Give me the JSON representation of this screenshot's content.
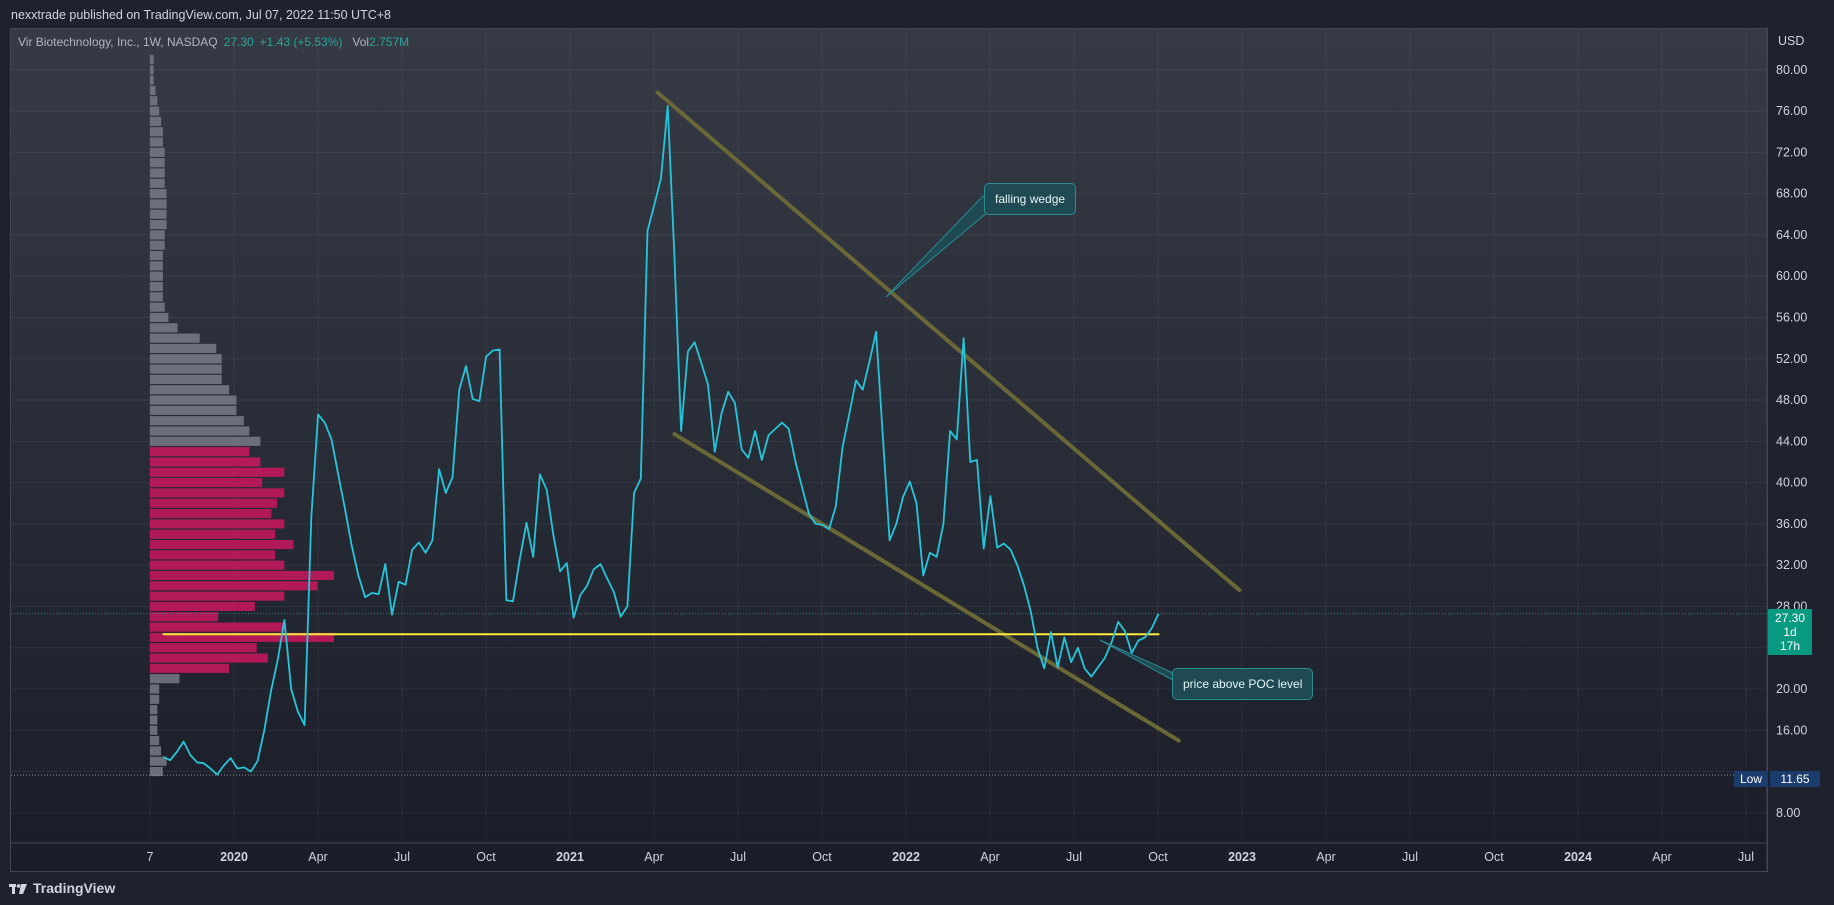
{
  "header": {
    "publisher_text": "nexxtrade published on TradingView.com, Jul 07, 2022 11:50 UTC+8"
  },
  "legend": {
    "symbol": "Vir Biotechnology, Inc., 1W, NASDAQ",
    "last": "27.30",
    "change": "+1.43 (+5.53%)",
    "vol_label": "Vol",
    "vol_value": "2.757M"
  },
  "brand": {
    "name": "TradingView"
  },
  "colors": {
    "line": "#26c6da",
    "profile_gray": "#787b86",
    "profile_value_area": "#c2185b",
    "poc": "#ffeb3b",
    "wedge": "#6b6837",
    "callout_bg": "#1f4a54",
    "price_tag": "#089981",
    "low_tag": "#1c3c6e"
  },
  "price_tag": {
    "price": "27.30",
    "countdown": "1d 17h"
  },
  "low_tag": {
    "label": "Low",
    "value": "11.65"
  },
  "annotations": [
    {
      "text": "falling wedge"
    },
    {
      "text": "price above POC level"
    }
  ],
  "chart_data": {
    "type": "line",
    "title": "",
    "xlabel": "",
    "ylabel": "USD",
    "currency": "USD",
    "ylim": [
      4,
      82
    ],
    "y_ticks": [
      "80.00",
      "76.00",
      "72.00",
      "68.00",
      "64.00",
      "60.00",
      "56.00",
      "52.00",
      "48.00",
      "44.00",
      "40.00",
      "36.00",
      "32.00",
      "28.00",
      "24.00",
      "20.00",
      "16.00",
      "8.00"
    ],
    "x_ticks": [
      {
        "label": "7",
        "bold": false
      },
      {
        "label": "2020",
        "bold": true
      },
      {
        "label": "Apr",
        "bold": false
      },
      {
        "label": "Jul",
        "bold": false
      },
      {
        "label": "Oct",
        "bold": false
      },
      {
        "label": "2021",
        "bold": true
      },
      {
        "label": "Apr",
        "bold": false
      },
      {
        "label": "Jul",
        "bold": false
      },
      {
        "label": "Oct",
        "bold": false
      },
      {
        "label": "2022",
        "bold": true
      },
      {
        "label": "Apr",
        "bold": false
      },
      {
        "label": "Jul",
        "bold": false
      },
      {
        "label": "Oct",
        "bold": false
      },
      {
        "label": "2023",
        "bold": true
      },
      {
        "label": "Apr",
        "bold": false
      },
      {
        "label": "Jul",
        "bold": false
      },
      {
        "label": "Oct",
        "bold": false
      },
      {
        "label": "2024",
        "bold": true
      },
      {
        "label": "Apr",
        "bold": false
      },
      {
        "label": "Jul",
        "bold": false
      }
    ],
    "last_price": 27.3,
    "low": 11.65,
    "poc_price": 25.3,
    "grid": true,
    "series": [
      {
        "values": [
          [
            2019.79,
            13.4
          ],
          [
            2019.81,
            13.1
          ],
          [
            2019.83,
            13.9
          ],
          [
            2019.85,
            14.9
          ],
          [
            2019.87,
            13.6
          ],
          [
            2019.89,
            12.9
          ],
          [
            2019.91,
            12.8
          ],
          [
            2019.93,
            12.3
          ],
          [
            2019.95,
            11.7
          ],
          [
            2019.97,
            12.6
          ],
          [
            2019.99,
            13.3
          ],
          [
            2020.01,
            12.3
          ],
          [
            2020.03,
            12.4
          ],
          [
            2020.05,
            12.0
          ],
          [
            2020.07,
            13.0
          ],
          [
            2020.09,
            16.0
          ],
          [
            2020.11,
            19.8
          ],
          [
            2020.13,
            22.8
          ],
          [
            2020.15,
            26.7
          ],
          [
            2020.17,
            20.0
          ],
          [
            2020.19,
            17.8
          ],
          [
            2020.21,
            16.5
          ],
          [
            2020.23,
            36.6
          ],
          [
            2020.25,
            46.6
          ],
          [
            2020.27,
            45.8
          ],
          [
            2020.29,
            44.2
          ],
          [
            2020.31,
            40.8
          ],
          [
            2020.33,
            37.5
          ],
          [
            2020.35,
            33.9
          ],
          [
            2020.37,
            31.0
          ],
          [
            2020.39,
            28.9
          ],
          [
            2020.41,
            29.3
          ],
          [
            2020.43,
            29.2
          ],
          [
            2020.45,
            32.1
          ],
          [
            2020.47,
            27.2
          ],
          [
            2020.49,
            30.4
          ],
          [
            2020.51,
            30.1
          ],
          [
            2020.53,
            33.5
          ],
          [
            2020.55,
            34.2
          ],
          [
            2020.57,
            33.2
          ],
          [
            2020.59,
            34.4
          ],
          [
            2020.61,
            41.3
          ],
          [
            2020.63,
            39.0
          ],
          [
            2020.65,
            40.5
          ],
          [
            2020.67,
            49.0
          ],
          [
            2020.69,
            51.3
          ],
          [
            2020.71,
            48.1
          ],
          [
            2020.73,
            47.9
          ],
          [
            2020.75,
            52.2
          ],
          [
            2020.77,
            52.8
          ],
          [
            2020.79,
            52.9
          ],
          [
            2020.81,
            28.6
          ],
          [
            2020.83,
            28.5
          ],
          [
            2020.85,
            32.6
          ],
          [
            2020.87,
            36.1
          ],
          [
            2020.89,
            32.8
          ],
          [
            2020.91,
            40.8
          ],
          [
            2020.93,
            39.3
          ],
          [
            2020.95,
            34.9
          ],
          [
            2020.97,
            31.4
          ],
          [
            2020.99,
            32.2
          ],
          [
            2021.01,
            26.9
          ],
          [
            2021.03,
            29.1
          ],
          [
            2021.05,
            30.0
          ],
          [
            2021.07,
            31.6
          ],
          [
            2021.09,
            32.1
          ],
          [
            2021.11,
            30.7
          ],
          [
            2021.13,
            29.4
          ],
          [
            2021.15,
            27.0
          ],
          [
            2021.17,
            28.0
          ],
          [
            2021.19,
            39.0
          ],
          [
            2021.21,
            40.4
          ],
          [
            2021.23,
            64.4
          ],
          [
            2021.25,
            66.9
          ],
          [
            2021.27,
            69.5
          ],
          [
            2021.29,
            76.5
          ],
          [
            2021.31,
            62.0
          ],
          [
            2021.33,
            45.0
          ],
          [
            2021.35,
            52.7
          ],
          [
            2021.37,
            53.6
          ],
          [
            2021.39,
            51.6
          ],
          [
            2021.41,
            49.5
          ],
          [
            2021.43,
            43.0
          ],
          [
            2021.45,
            46.7
          ],
          [
            2021.47,
            48.8
          ],
          [
            2021.49,
            47.7
          ],
          [
            2021.51,
            43.2
          ],
          [
            2021.53,
            42.4
          ],
          [
            2021.55,
            45.0
          ],
          [
            2021.57,
            42.2
          ],
          [
            2021.59,
            44.6
          ],
          [
            2021.61,
            45.2
          ],
          [
            2021.63,
            45.8
          ],
          [
            2021.65,
            45.2
          ],
          [
            2021.67,
            42.0
          ],
          [
            2021.69,
            39.5
          ],
          [
            2021.71,
            37.0
          ],
          [
            2021.73,
            36.0
          ],
          [
            2021.75,
            35.9
          ],
          [
            2021.77,
            35.5
          ],
          [
            2021.79,
            37.7
          ],
          [
            2021.81,
            43.4
          ],
          [
            2021.83,
            46.6
          ],
          [
            2021.85,
            49.9
          ],
          [
            2021.87,
            49.0
          ],
          [
            2021.89,
            51.7
          ],
          [
            2021.91,
            54.6
          ],
          [
            2021.93,
            44.4
          ],
          [
            2021.95,
            34.4
          ],
          [
            2021.97,
            36.0
          ],
          [
            2021.99,
            38.6
          ],
          [
            2022.01,
            40.1
          ],
          [
            2022.03,
            38.0
          ],
          [
            2022.05,
            31.0
          ],
          [
            2022.07,
            33.2
          ],
          [
            2022.09,
            32.8
          ],
          [
            2022.11,
            36.0
          ],
          [
            2022.13,
            45.0
          ],
          [
            2022.15,
            44.2
          ],
          [
            2022.17,
            54.0
          ],
          [
            2022.19,
            42.0
          ],
          [
            2022.21,
            42.2
          ],
          [
            2022.23,
            33.6
          ],
          [
            2022.25,
            38.7
          ],
          [
            2022.27,
            33.7
          ],
          [
            2022.29,
            34.1
          ],
          [
            2022.31,
            33.5
          ],
          [
            2022.33,
            32.0
          ],
          [
            2022.35,
            30.0
          ],
          [
            2022.37,
            27.5
          ],
          [
            2022.39,
            24.0
          ],
          [
            2022.41,
            22.0
          ],
          [
            2022.43,
            25.5
          ],
          [
            2022.45,
            22.1
          ],
          [
            2022.47,
            25.0
          ],
          [
            2022.49,
            22.6
          ],
          [
            2022.51,
            24.0
          ],
          [
            2022.53,
            22.0
          ],
          [
            2022.55,
            21.2
          ],
          [
            2022.57,
            22.1
          ],
          [
            2022.59,
            23.0
          ],
          [
            2022.61,
            24.5
          ],
          [
            2022.63,
            26.5
          ],
          [
            2022.65,
            25.6
          ],
          [
            2022.67,
            23.5
          ],
          [
            2022.69,
            24.7
          ],
          [
            2022.71,
            25.0
          ],
          [
            2022.73,
            25.9
          ],
          [
            2022.75,
            27.3
          ]
        ]
      }
    ],
    "volume_profile": {
      "bin_size": 1.0,
      "bins": [
        {
          "price": 12,
          "width": 0.07
        },
        {
          "price": 13,
          "width": 0.09
        },
        {
          "price": 14,
          "width": 0.06
        },
        {
          "price": 15,
          "width": 0.05
        },
        {
          "price": 16,
          "width": 0.04
        },
        {
          "price": 17,
          "width": 0.04
        },
        {
          "price": 18,
          "width": 0.04
        },
        {
          "price": 19,
          "width": 0.05
        },
        {
          "price": 20,
          "width": 0.05
        },
        {
          "price": 21,
          "width": 0.16
        },
        {
          "price": 22,
          "width": 0.43
        },
        {
          "price": 23,
          "width": 0.64
        },
        {
          "price": 24,
          "width": 0.58
        },
        {
          "price": 25,
          "width": 1.0
        },
        {
          "price": 26,
          "width": 0.73
        },
        {
          "price": 27,
          "width": 0.37
        },
        {
          "price": 28,
          "width": 0.57
        },
        {
          "price": 29,
          "width": 0.73
        },
        {
          "price": 30,
          "width": 0.91
        },
        {
          "price": 31,
          "width": 1.0
        },
        {
          "price": 32,
          "width": 0.73
        },
        {
          "price": 33,
          "width": 0.68
        },
        {
          "price": 34,
          "width": 0.78
        },
        {
          "price": 35,
          "width": 0.68
        },
        {
          "price": 36,
          "width": 0.73
        },
        {
          "price": 37,
          "width": 0.66
        },
        {
          "price": 38,
          "width": 0.69
        },
        {
          "price": 39,
          "width": 0.73
        },
        {
          "price": 40,
          "width": 0.61
        },
        {
          "price": 41,
          "width": 0.73
        },
        {
          "price": 42,
          "width": 0.6
        },
        {
          "price": 43,
          "width": 0.54
        },
        {
          "price": 44,
          "width": 0.6
        },
        {
          "price": 45,
          "width": 0.54
        },
        {
          "price": 46,
          "width": 0.51
        },
        {
          "price": 47,
          "width": 0.47
        },
        {
          "price": 48,
          "width": 0.47
        },
        {
          "price": 49,
          "width": 0.43
        },
        {
          "price": 50,
          "width": 0.39
        },
        {
          "price": 51,
          "width": 0.39
        },
        {
          "price": 52,
          "width": 0.39
        },
        {
          "price": 53,
          "width": 0.36
        },
        {
          "price": 54,
          "width": 0.27
        },
        {
          "price": 55,
          "width": 0.15
        },
        {
          "price": 56,
          "width": 0.1
        },
        {
          "price": 57,
          "width": 0.08
        },
        {
          "price": 58,
          "width": 0.07
        },
        {
          "price": 59,
          "width": 0.07
        },
        {
          "price": 60,
          "width": 0.07
        },
        {
          "price": 61,
          "width": 0.07
        },
        {
          "price": 62,
          "width": 0.07
        },
        {
          "price": 63,
          "width": 0.08
        },
        {
          "price": 64,
          "width": 0.08
        },
        {
          "price": 65,
          "width": 0.09
        },
        {
          "price": 66,
          "width": 0.09
        },
        {
          "price": 67,
          "width": 0.09
        },
        {
          "price": 68,
          "width": 0.09
        },
        {
          "price": 69,
          "width": 0.08
        },
        {
          "price": 70,
          "width": 0.08
        },
        {
          "price": 71,
          "width": 0.08
        },
        {
          "price": 72,
          "width": 0.08
        },
        {
          "price": 73,
          "width": 0.07
        },
        {
          "price": 74,
          "width": 0.07
        },
        {
          "price": 75,
          "width": 0.06
        },
        {
          "price": 76,
          "width": 0.05
        },
        {
          "price": 77,
          "width": 0.04
        },
        {
          "price": 78,
          "width": 0.03
        },
        {
          "price": 79,
          "width": 0.02
        },
        {
          "price": 80,
          "width": 0.02
        },
        {
          "price": 81,
          "width": 0.02
        }
      ],
      "value_area": [
        22,
        43
      ],
      "poc": 25.3
    },
    "trendlines": [
      {
        "name": "wedge-upper",
        "from": [
          2021.26,
          77.8
        ],
        "to": [
          2022.99,
          29.6
        ]
      },
      {
        "name": "wedge-lower",
        "from": [
          2021.31,
          44.7
        ],
        "to": [
          2022.81,
          15.0
        ]
      },
      {
        "name": "poc-line",
        "from": [
          2019.79,
          25.3
        ],
        "to": [
          2022.75,
          25.3
        ]
      }
    ]
  }
}
